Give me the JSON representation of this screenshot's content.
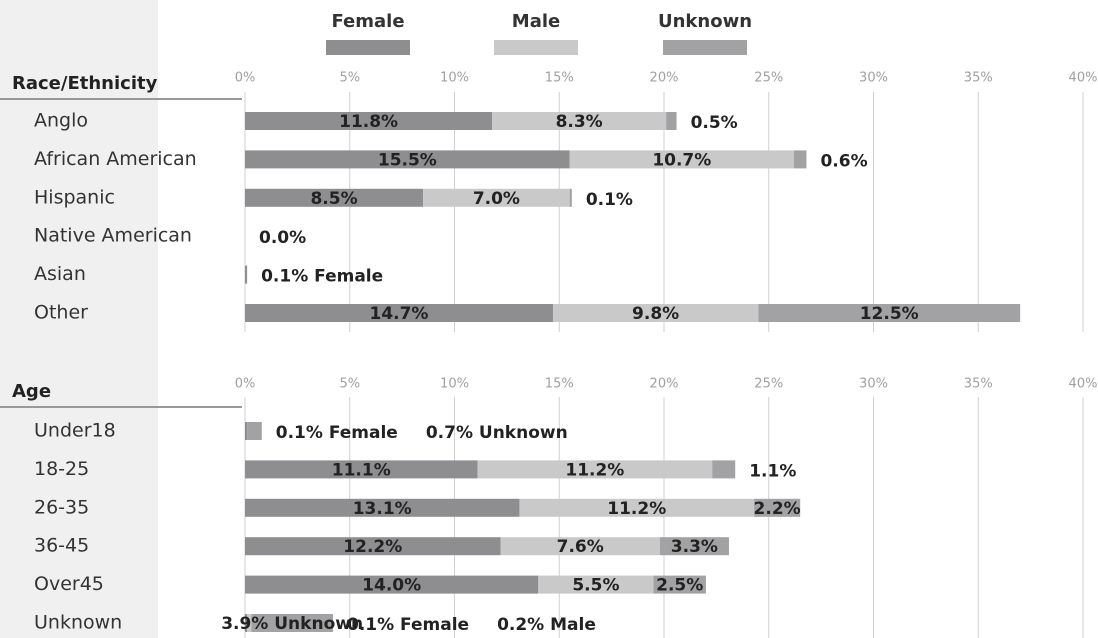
{
  "chart_data": [
    {
      "type": "bar",
      "orientation": "horizontal",
      "stacked": true,
      "y_label": "Race/Ethnicity",
      "categories": [
        "Anglo",
        "African American",
        "Hispanic",
        "Native American",
        "Asian",
        "Other"
      ],
      "series": [
        {
          "name": "Female",
          "color": "#8e8e91",
          "values": [
            11.8,
            15.5,
            8.5,
            0,
            0.1,
            14.7
          ],
          "value_labels": [
            "11.8%",
            "15.5%",
            "8.5%",
            null,
            "0.1% Female",
            "14.7%"
          ]
        },
        {
          "name": "Male",
          "color": "#c9c9c9",
          "values": [
            8.3,
            10.7,
            7.0,
            0,
            0,
            9.8
          ],
          "value_labels": [
            "8.3%",
            "10.7%",
            "7.0%",
            null,
            null,
            "9.8%"
          ]
        },
        {
          "name": "Unknown",
          "color": "#a2a2a5",
          "values": [
            0.5,
            0.6,
            0.1,
            0,
            0,
            12.5
          ],
          "value_labels": [
            "0.5%",
            "0.6%",
            "0.1%",
            "0.0%",
            null,
            "12.5%"
          ]
        }
      ],
      "xlim": [
        0,
        40
      ],
      "xticks": [
        {
          "value": 0,
          "label": "0%"
        },
        {
          "value": 5,
          "label": "5%"
        },
        {
          "value": 10,
          "label": "10%"
        },
        {
          "value": 15,
          "label": "15%"
        },
        {
          "value": 20,
          "label": "20%"
        },
        {
          "value": 25,
          "label": "25%"
        },
        {
          "value": 30,
          "label": "30%"
        },
        {
          "value": 35,
          "label": "35%"
        },
        {
          "value": 40,
          "label": "40%"
        }
      ],
      "grid": true
    },
    {
      "type": "bar",
      "orientation": "horizontal",
      "stacked": true,
      "y_label": "Age",
      "categories": [
        "Under18",
        "18-25",
        "26-35",
        "36-45",
        "Over45",
        "Unknown"
      ],
      "series": [
        {
          "values": [
            0.1,
            11.1,
            13.1,
            12.2,
            14.0,
            0.1
          ],
          "value_labels": [
            "0.1% Female",
            "11.1%",
            "13.1%",
            "12.2%",
            "14.0%",
            "0.1% Female"
          ]
        },
        {
          "values": [
            0,
            11.2,
            11.2,
            7.6,
            5.5,
            0.2
          ],
          "value_labels": [
            null,
            "11.2%",
            "11.2%",
            "7.6%",
            "5.5%",
            "0.2% Male"
          ]
        },
        {
          "values": [
            0.7,
            1.1,
            2.2,
            3.3,
            2.5,
            3.9
          ],
          "value_labels": [
            "0.7% Unknown",
            "1.1%",
            "2.2%",
            "3.3%",
            "2.5%",
            "3.9% Unknown"
          ]
        }
      ],
      "xlim": [
        0,
        40
      ],
      "xticks": [
        {
          "value": 0,
          "label": "0%"
        },
        {
          "value": 5,
          "label": "5%"
        },
        {
          "value": 10,
          "label": "10%"
        },
        {
          "value": 15,
          "label": "15%"
        },
        {
          "value": 20,
          "label": "20%"
        },
        {
          "value": 25,
          "label": "25%"
        },
        {
          "value": 30,
          "label": "30%"
        },
        {
          "value": 35,
          "label": "35%"
        },
        {
          "value": 40,
          "label": "40%"
        }
      ],
      "grid": true
    }
  ]
}
